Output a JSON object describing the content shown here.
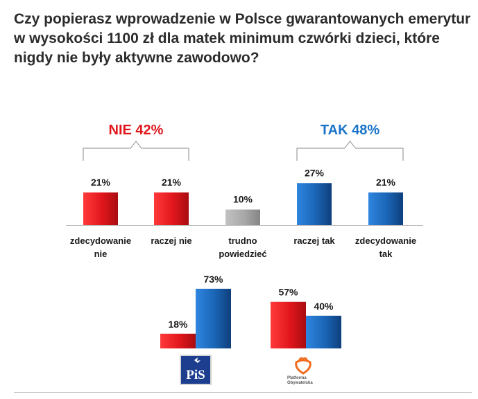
{
  "question": "Czy popierasz wprowadzenie w Polsce gwarantowanych emerytur w wysokości 1100 zł dla matek minimum czwórki dzieci, które nigdy nie były aktywne zawodowo?",
  "colors": {
    "nie": "#e0161c",
    "tak": "#1a64b4",
    "neutral": "#a7a7a7",
    "nie_label": "#e0161c",
    "tak_label": "#1a73c8"
  },
  "chart_data": [
    {
      "type": "bar",
      "categories": [
        [
          "zdecydowanie",
          "nie"
        ],
        [
          "raczej nie"
        ],
        [
          "trudno",
          "powiedzieć"
        ],
        [
          "raczej tak"
        ],
        [
          "zdecydowanie",
          "tak"
        ]
      ],
      "values": [
        21,
        21,
        10,
        27,
        21
      ],
      "value_labels": [
        "21%",
        "21%",
        "10%",
        "27%",
        "21%"
      ],
      "group_labels": [
        {
          "text": "NIE 42%",
          "spans": [
            0,
            1
          ],
          "color": "red"
        },
        {
          "text": "TAK 48%",
          "spans": [
            3,
            4
          ],
          "color": "blue"
        }
      ],
      "bar_colors": [
        "red",
        "red",
        "gray",
        "blue",
        "blue"
      ],
      "ylim": [
        0,
        30
      ],
      "grid": false,
      "unit": "%"
    },
    {
      "type": "bar",
      "groups": [
        {
          "logo": "PiS",
          "values": [
            18,
            73
          ],
          "value_labels": [
            "18%",
            "73%"
          ]
        },
        {
          "logo": "Platforma Obywatelska",
          "logo_text": "Platforma Obywatelska",
          "values": [
            57,
            40
          ],
          "value_labels": [
            "57%",
            "40%"
          ]
        }
      ],
      "series_colors": [
        "red",
        "blue"
      ],
      "ylim": [
        0,
        80
      ],
      "grid": false,
      "unit": "%"
    }
  ]
}
